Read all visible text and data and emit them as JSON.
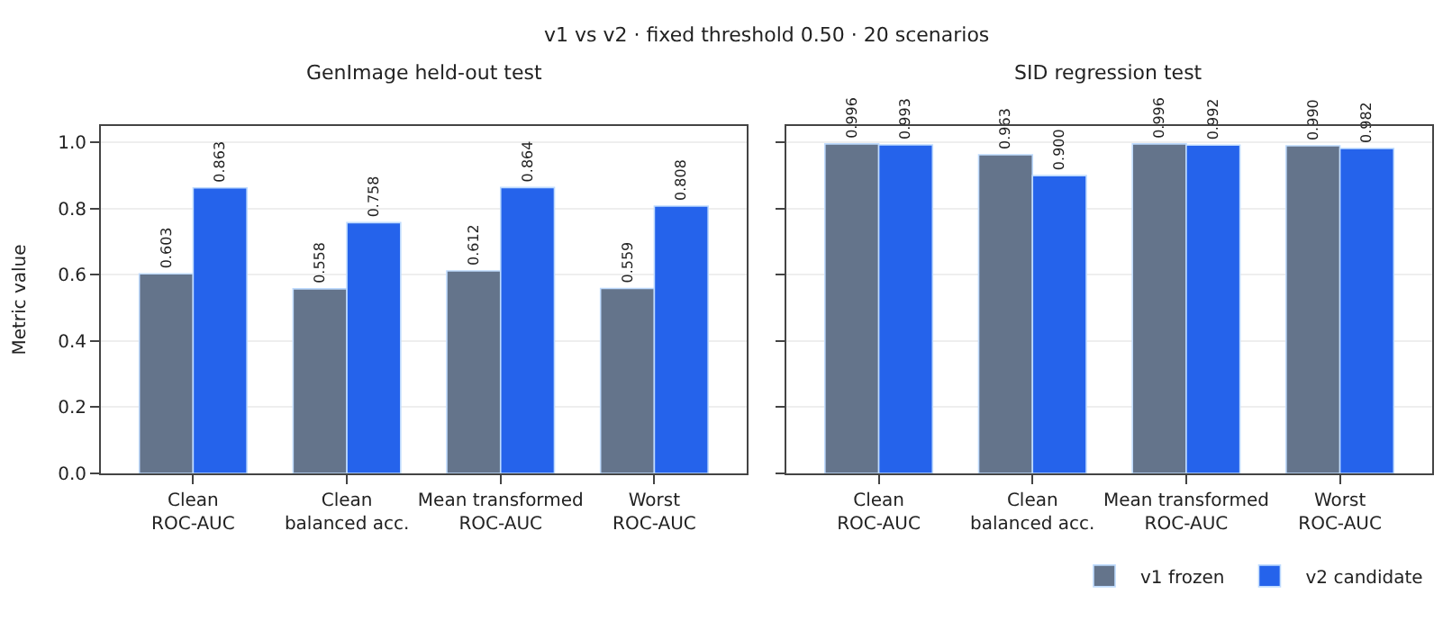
{
  "chart_data": [
    {
      "type": "bar",
      "title": "GenImage held-out test",
      "ylabel": "Metric value",
      "annotations": [
        "v1 vs v2 · fixed threshold 0.50 · 20 scenarios"
      ],
      "categories": [
        "Clean\nROC-AUC",
        "Clean\nbalanced acc.",
        "Mean transformed\nROC-AUC",
        "Worst\nROC-AUC"
      ],
      "series": [
        {
          "color": "#64748b",
          "values": [
            0.603,
            0.558,
            0.612,
            0.559
          ],
          "value_labels": [
            "0.603",
            "0.558",
            "0.612",
            "0.559"
          ]
        },
        {
          "color": "#2563eb",
          "values": [
            0.863,
            0.758,
            0.864,
            0.808
          ],
          "value_labels": [
            "0.863",
            "0.758",
            "0.864",
            "0.808"
          ]
        }
      ],
      "ylim": [
        0,
        1.05
      ],
      "yticks": [
        {
          "value": 0,
          "label": "0.0"
        },
        0.2,
        0.4,
        0.6,
        0.8,
        {
          "value": 1,
          "label": "1.0"
        }
      ],
      "grid": "y"
    },
    {
      "type": "bar",
      "title": "SID regression test",
      "categories": [
        "Clean\nROC-AUC",
        "Clean\nbalanced acc.",
        "Mean transformed\nROC-AUC",
        "Worst\nROC-AUC"
      ],
      "series": [
        {
          "name": "v1 frozen",
          "color": "#64748b",
          "values": [
            0.996,
            0.963,
            0.996,
            0.99
          ],
          "value_labels": [
            "0.996",
            "0.963",
            "0.996",
            "0.990"
          ]
        },
        {
          "name": "v2 candidate",
          "color": "#2563eb",
          "values": [
            0.993,
            0.9,
            0.992,
            0.982
          ],
          "value_labels": [
            "0.993",
            "0.900",
            "0.992",
            "0.982"
          ]
        }
      ],
      "ylim": [
        0,
        1.05
      ],
      "yticks": [
        0,
        0.2,
        0.4,
        0.6,
        0.8,
        1
      ],
      "grid": "y",
      "tick_labels": "x",
      "legend": "bottom right"
    }
  ]
}
